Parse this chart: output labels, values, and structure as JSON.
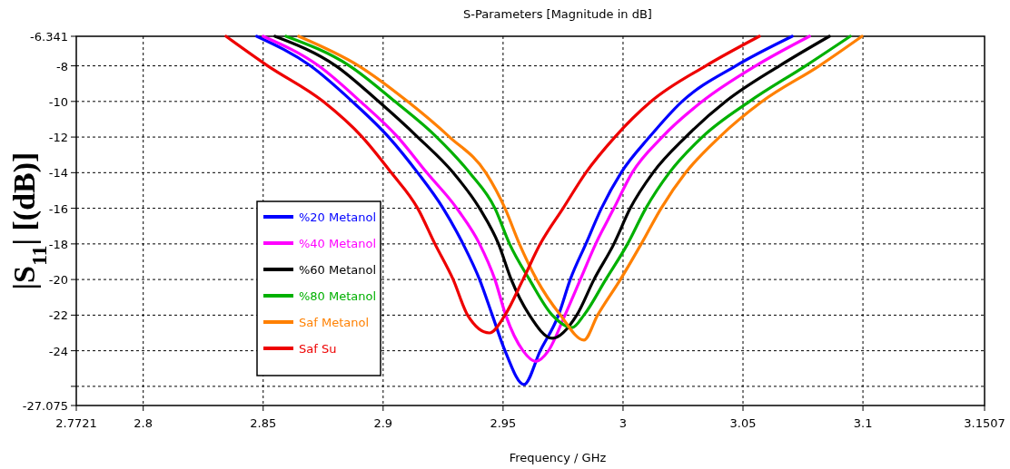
{
  "chart_data": {
    "type": "line",
    "title": "S-Parameters [Magnitude in dB]",
    "xlabel": "Frequency / GHz",
    "ylabel": "|S$_{11}$| [(dB)]",
    "xlim": [
      2.7721,
      3.1507
    ],
    "xticks": [
      2.7721,
      2.8,
      2.85,
      2.9,
      2.95,
      3,
      3.05,
      3.1,
      3.1507
    ],
    "ylim": [
      -27.075,
      -6.341
    ],
    "yticks": [
      -6.341,
      -8,
      -10,
      -12,
      -14,
      -16,
      -18,
      -20,
      -22,
      -24,
      {
        "value": -26,
        "label": null
      },
      -27.075
    ],
    "grid": true,
    "legend": "center left",
    "marker": "none",
    "line_style": "solid",
    "series": [
      {
        "name": "%20 Metanol",
        "color": "#0000ff",
        "x": [
          2.8473,
          2.8697,
          2.8871,
          2.9023,
          2.9144,
          2.925,
          2.9333,
          2.9402,
          2.9455,
          2.9508,
          2.9587,
          2.9655,
          2.9731,
          2.978,
          2.9845,
          2.991,
          2.9992,
          3.011,
          3.0246,
          3.047,
          3.0705
        ],
        "values": [
          -6.341,
          -8,
          -10,
          -12,
          -14,
          -16,
          -18,
          -20,
          -22,
          -24,
          -25.9,
          -24,
          -22,
          -20,
          -18,
          -16,
          -14,
          -12,
          -10,
          -8,
          -6.341
        ]
      },
      {
        "name": "%40 Metanol",
        "color": "#ff00ff",
        "x": [
          2.85,
          2.8731,
          2.8905,
          2.9061,
          2.9182,
          2.9307,
          2.9402,
          2.9466,
          2.9511,
          2.9583,
          2.9636,
          2.9689,
          2.9758,
          2.9822,
          2.9886,
          2.9962,
          3.0038,
          3.0163,
          3.033,
          3.0553,
          3.0777
        ],
        "values": [
          -6.341,
          -8,
          -10,
          -12,
          -14,
          -16,
          -18,
          -20,
          -22,
          -24,
          -24.6,
          -24,
          -22,
          -20,
          -18,
          -16,
          -14,
          -12,
          -10,
          -8,
          -6.341
        ]
      },
      {
        "name": "%60 Metanol",
        "color": "#000000",
        "x": [
          2.8549,
          2.8803,
          2.8981,
          2.9144,
          2.9292,
          2.9402,
          2.9481,
          2.9534,
          2.961,
          2.9705,
          2.9807,
          2.9879,
          2.9962,
          3.003,
          3.0125,
          3.0261,
          3.0428,
          3.0652,
          3.086
        ],
        "values": [
          -6.341,
          -8,
          -10,
          -12,
          -14,
          -16,
          -18,
          -20,
          -22,
          -23.3,
          -22,
          -20,
          -18,
          -16,
          -14,
          -12,
          -10,
          -8,
          -6.341
        ]
      },
      {
        "name": "%80 Metanol",
        "color": "#00b000",
        "x": [
          2.8595,
          2.886,
          2.9049,
          2.9223,
          2.936,
          2.9466,
          2.9527,
          2.961,
          2.9705,
          2.9788,
          2.9837,
          2.9928,
          3.0019,
          3.0095,
          3.0193,
          3.033,
          3.0527,
          3.0761,
          3.0947
        ],
        "values": [
          -6.341,
          -8,
          -10,
          -12,
          -14,
          -16,
          -18,
          -20,
          -22,
          -22.7,
          -22,
          -20,
          -18,
          -16,
          -14,
          -12,
          -10,
          -8,
          -6.341
        ]
      },
      {
        "name": "Saf Metanol",
        "color": "#ff8000",
        "x": [
          2.8648,
          2.8898,
          2.9102,
          2.9277,
          2.9428,
          2.9508,
          2.9568,
          2.964,
          2.9739,
          2.9837,
          2.9894,
          2.9989,
          3.0076,
          3.0159,
          3.0261,
          3.0402,
          3.058,
          3.0818,
          3.0996
        ],
        "values": [
          -6.341,
          -8,
          -10,
          -12,
          -14,
          -16,
          -18,
          -20,
          -22,
          -23.4,
          -22,
          -20,
          -18,
          -16,
          -14,
          -12,
          -10,
          -8,
          -6.341
        ]
      },
      {
        "name": "Saf Su",
        "color": "#ee0000",
        "x": [
          2.8345,
          2.8519,
          2.875,
          2.8913,
          2.9034,
          2.9144,
          2.9216,
          2.9292,
          2.9352,
          2.9443,
          2.9508,
          2.9583,
          2.9655,
          2.975,
          2.9845,
          2.9966,
          3.0117,
          3.0345,
          3.0568
        ],
        "values": [
          -6.341,
          -8,
          -10,
          -12,
          -14,
          -16,
          -18,
          -20,
          -22,
          -23,
          -22,
          -20,
          -18,
          -16,
          -14,
          -12,
          -10,
          -8,
          -6.341
        ]
      }
    ]
  }
}
